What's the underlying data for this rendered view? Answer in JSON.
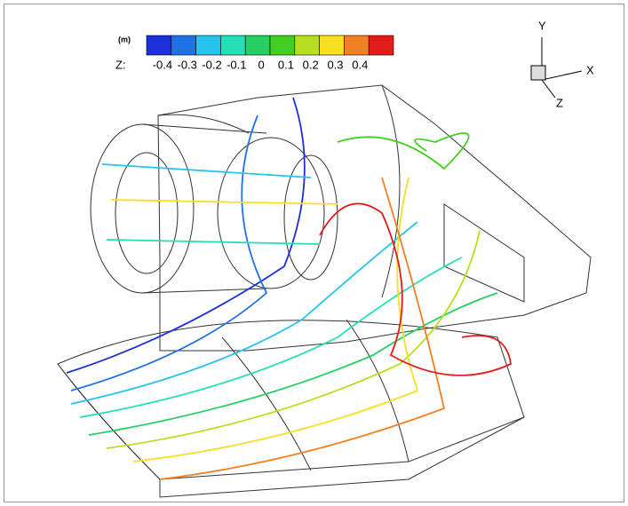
{
  "legend": {
    "unit": "(m)",
    "variable": "Z:",
    "levels": [
      {
        "label": "-0.4",
        "color": "#1d2fd6"
      },
      {
        "label": "-0.3",
        "color": "#1f72e6"
      },
      {
        "label": "-0.2",
        "color": "#24c4ef"
      },
      {
        "label": "-0.1",
        "color": "#25dfb6"
      },
      {
        "label": "0",
        "color": "#25cf63"
      },
      {
        "label": "0.1",
        "color": "#43cf22"
      },
      {
        "label": "0.2",
        "color": "#b7df22"
      },
      {
        "label": "0.3",
        "color": "#f7df22"
      },
      {
        "label": "0.4",
        "color": "#f08022"
      }
    ],
    "last_color": "#e21b1b"
  },
  "axes": {
    "y": "Y",
    "x": "X",
    "z": "Z"
  }
}
